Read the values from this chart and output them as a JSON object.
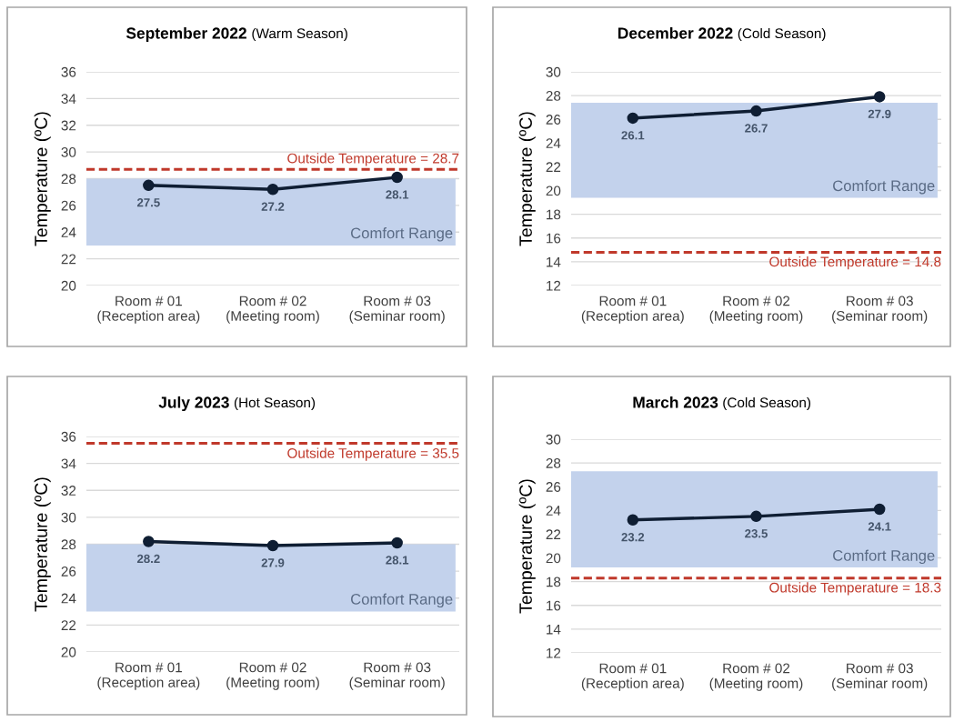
{
  "chart_data": [
    {
      "type": "line",
      "title": "September 2022",
      "subtitle": "(Warm Season)",
      "ylabel": "Temperature (ºC)",
      "categories": [
        "Room # 01\n(Reception area)",
        "Room # 02\n(Meeting room)",
        "Room # 03\n(Seminar room)"
      ],
      "series": [
        {
          "color": "#0f1e33",
          "values": [
            27.5,
            27.2,
            28.1
          ]
        }
      ],
      "ylim": [
        20,
        36
      ],
      "yticks": [
        20,
        22,
        24,
        26,
        28,
        30,
        32,
        34,
        36
      ],
      "grid": "y",
      "marker": "circle",
      "line_style": "solid",
      "data_labels": true,
      "ref_lines": [
        {
          "axis": "y",
          "value": 28.7,
          "label": "Outside Temperature = 28.7",
          "color": "#c0392b",
          "line_style": "dashed"
        }
      ],
      "bands": [
        {
          "axis": "y",
          "from": 23,
          "to": 28,
          "label": "Comfort Range",
          "color": "#c3d2ec"
        }
      ]
    },
    {
      "type": "line",
      "title": "December 2022",
      "subtitle": "(Cold Season)",
      "ylabel": "Temperature (ºC)",
      "categories": [
        "Room # 01\n(Reception area)",
        "Room # 02\n(Meeting room)",
        "Room # 03\n(Seminar room)"
      ],
      "series": [
        {
          "color": "#0f1e33",
          "values": [
            26.1,
            26.7,
            27.9
          ]
        }
      ],
      "ylim": [
        12,
        30
      ],
      "yticks": [
        12,
        14,
        16,
        18,
        20,
        22,
        24,
        26,
        28,
        30
      ],
      "grid": "y",
      "marker": "circle",
      "line_style": "solid",
      "data_labels": true,
      "ref_lines": [
        {
          "axis": "y",
          "value": 14.8,
          "label": "Outside Temperature = 14.8",
          "color": "#c0392b",
          "line_style": "dashed"
        }
      ],
      "bands": [
        {
          "axis": "y",
          "from": 19.4,
          "to": 27.4,
          "label": "Comfort Range",
          "color": "#c3d2ec"
        }
      ]
    },
    {
      "type": "line",
      "title": "July 2023",
      "subtitle": "(Hot Season)",
      "ylabel": "Temperature (ºC)",
      "categories": [
        "Room # 01\n(Reception area)",
        "Room # 02\n(Meeting room)",
        "Room # 03\n(Seminar room)"
      ],
      "series": [
        {
          "color": "#0f1e33",
          "values": [
            28.2,
            27.9,
            28.1
          ]
        }
      ],
      "ylim": [
        20,
        36
      ],
      "yticks": [
        20,
        22,
        24,
        26,
        28,
        30,
        32,
        34,
        36
      ],
      "grid": "y",
      "marker": "circle",
      "line_style": "solid",
      "data_labels": true,
      "ref_lines": [
        {
          "axis": "y",
          "value": 35.5,
          "label": "Outside Temperature = 35.5",
          "color": "#c0392b",
          "line_style": "dashed"
        }
      ],
      "bands": [
        {
          "axis": "y",
          "from": 23,
          "to": 28,
          "label": "Comfort Range",
          "color": "#c3d2ec"
        }
      ]
    },
    {
      "type": "line",
      "title": "March 2023",
      "subtitle": "(Cold Season)",
      "ylabel": "Temperature (ºC)",
      "categories": [
        "Room # 01\n(Reception area)",
        "Room # 02\n(Meeting room)",
        "Room # 03\n(Seminar room)"
      ],
      "series": [
        {
          "color": "#0f1e33",
          "values": [
            23.2,
            23.5,
            24.1
          ]
        }
      ],
      "ylim": [
        12,
        30
      ],
      "yticks": [
        12,
        14,
        16,
        18,
        20,
        22,
        24,
        26,
        28,
        30
      ],
      "grid": "y",
      "marker": "circle",
      "line_style": "solid",
      "data_labels": true,
      "ref_lines": [
        {
          "axis": "y",
          "value": 18.3,
          "label": "Outside Temperature = 18.3",
          "color": "#c0392b",
          "line_style": "dashed"
        }
      ],
      "bands": [
        {
          "axis": "y",
          "from": 19.2,
          "to": 27.3,
          "label": "Comfort Range",
          "color": "#c3d2ec"
        }
      ]
    }
  ]
}
